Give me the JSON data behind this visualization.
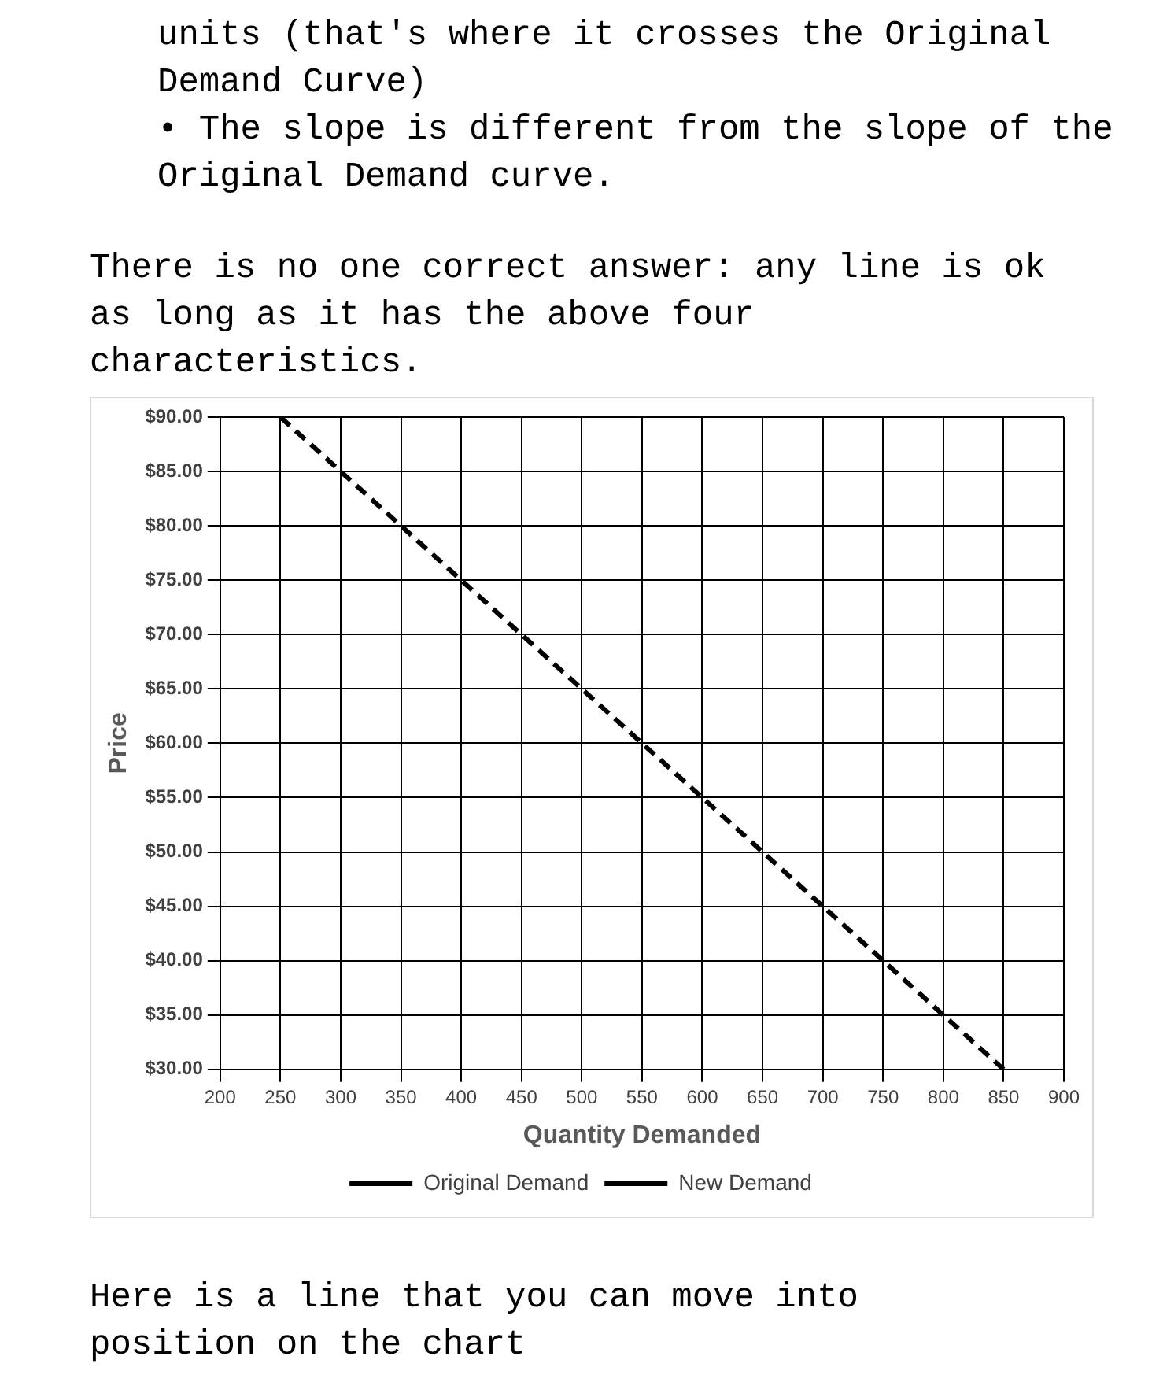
{
  "chart_data": {
    "type": "line",
    "annotations": [
      "units (that's where it crosses the Original Demand Curve)",
      "• The slope is different from the slope of the Original Demand curve.",
      "There is no one correct answer:  any line is ok as long as it has the above four characteristics.",
      "Here is a line that you can move into position on the chart"
    ],
    "xlabel": "Quantity Demanded",
    "ylabel": "Price",
    "x": [
      250,
      300,
      350,
      400,
      450,
      500,
      550,
      600,
      650,
      700,
      750,
      800,
      850
    ],
    "series": [
      {
        "name": "Original Demand",
        "color": "#000000",
        "line_style": "dashed",
        "values": [
          90,
          85,
          80,
          75,
          70,
          65,
          60,
          55,
          50,
          45,
          40,
          35,
          30
        ]
      },
      {
        "name": "New Demand",
        "color": "#000000",
        "line_style": "solid",
        "values": [
          null,
          null,
          null,
          null,
          null,
          null,
          null,
          null,
          null,
          null,
          null,
          null,
          null
        ]
      }
    ],
    "xlim": [
      200,
      900
    ],
    "xticks": [
      200,
      250,
      300,
      350,
      400,
      450,
      500,
      550,
      600,
      650,
      700,
      750,
      800,
      850,
      900
    ],
    "ylim": [
      30,
      90
    ],
    "yticks": [
      {
        "value": 30,
        "label": "$30.00"
      },
      {
        "value": 35,
        "label": "$35.00"
      },
      {
        "value": 40,
        "label": "$40.00"
      },
      {
        "value": 45,
        "label": "$45.00"
      },
      {
        "value": 50,
        "label": "$50.00"
      },
      {
        "value": 55,
        "label": "$55.00"
      },
      {
        "value": 60,
        "label": "$60.00"
      },
      {
        "value": 65,
        "label": "$65.00"
      },
      {
        "value": 70,
        "label": "$70.00"
      },
      {
        "value": 75,
        "label": "$75.00"
      },
      {
        "value": 80,
        "label": "$80.00"
      },
      {
        "value": 85,
        "label": "$85.00"
      },
      {
        "value": 90,
        "label": "$90.00"
      }
    ],
    "grid": true,
    "legend": "bottom",
    "marker": "none"
  }
}
